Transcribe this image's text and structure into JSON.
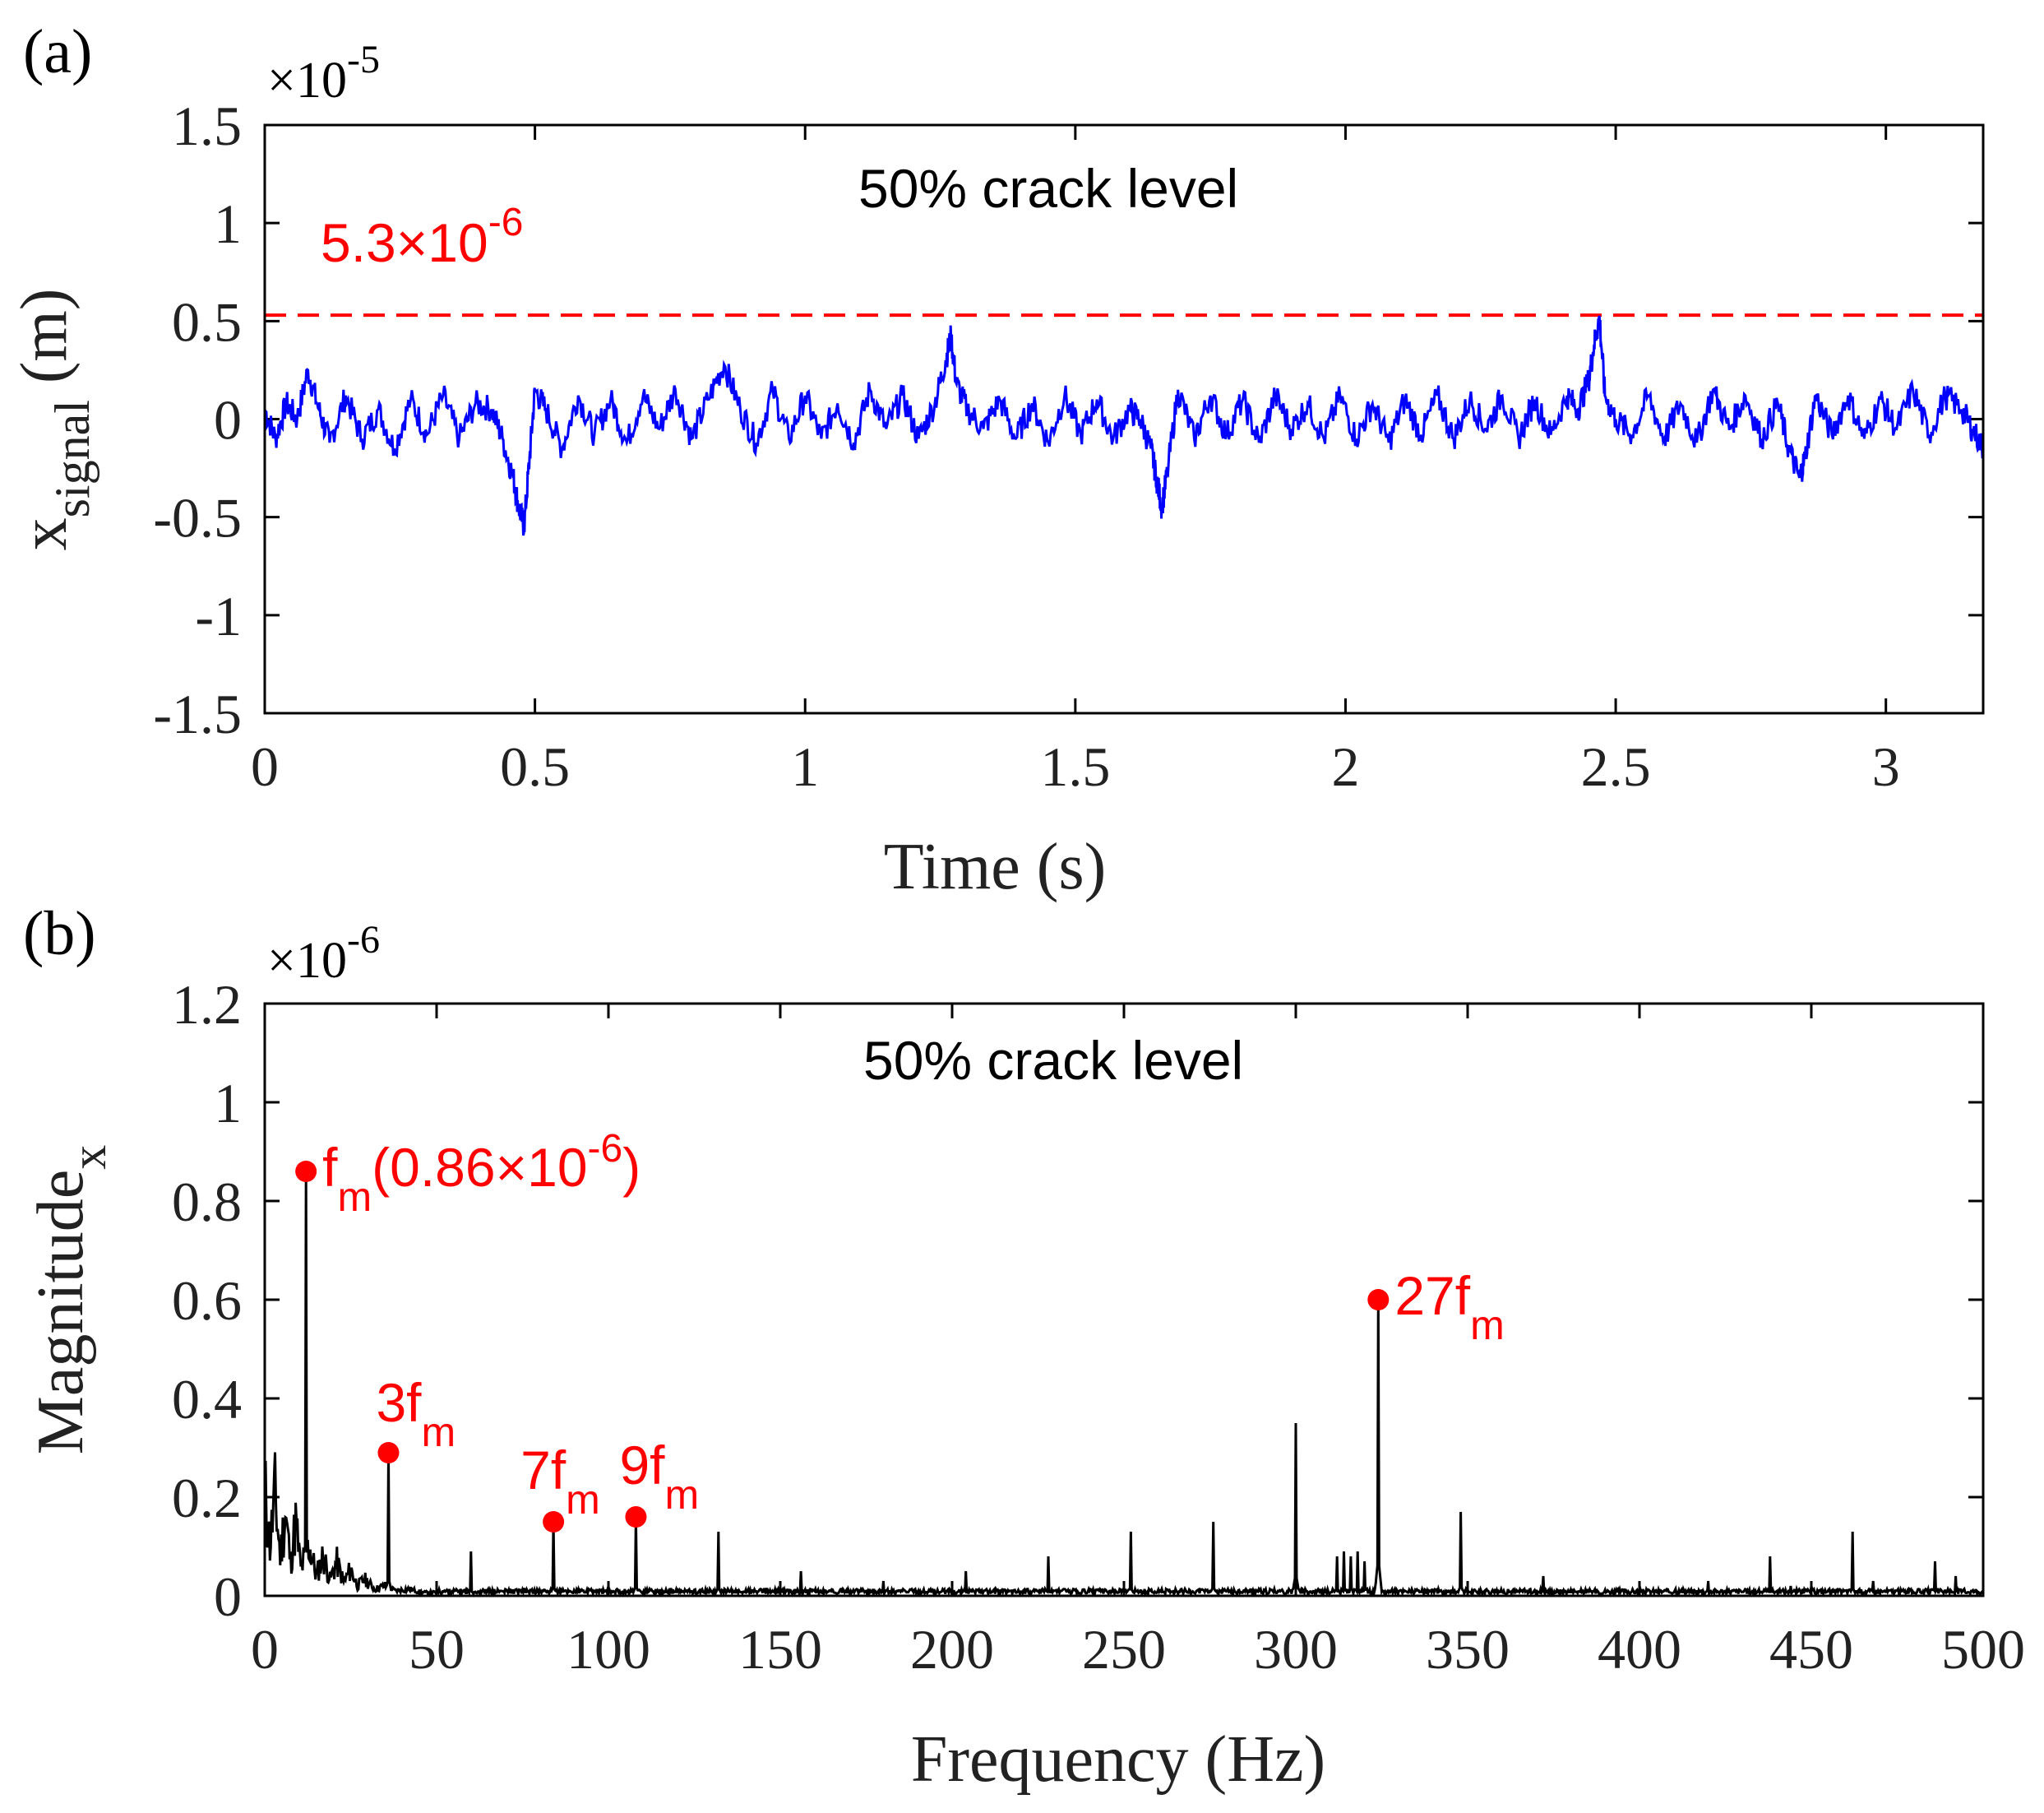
{
  "chart_data": [
    {
      "type": "line",
      "panel_label": "(a)",
      "title": "50% crack level",
      "xlabel": "Time (s)",
      "ylabel_main": "x",
      "ylabel_sub": "signal",
      "ylabel_unit": " (m)",
      "exponent_prefix": "×10",
      "exponent_power": "-5",
      "xlim": [
        0,
        3.18
      ],
      "ylim": [
        -1.5,
        1.5
      ],
      "xticks": [
        0,
        0.5,
        1,
        1.5,
        2,
        2.5,
        3
      ],
      "xtick_labels": [
        "0",
        "0.5",
        "1",
        "1.5",
        "2",
        "2.5",
        "3"
      ],
      "yticks": [
        -1.5,
        -1,
        -0.5,
        0,
        0.5,
        1,
        1.5
      ],
      "ytick_labels": [
        "-1.5",
        "-1",
        "-0.5",
        "0",
        "0.5",
        "1",
        "1.5"
      ],
      "threshold": {
        "value": 0.53,
        "label_mantissa": "5.3×10",
        "label_power": "-6",
        "color": "#ff0000"
      },
      "series": [
        {
          "name": "x_signal",
          "color": "#0000ff",
          "x": [
            0,
            0.02,
            0.04,
            0.06,
            0.08,
            0.1,
            0.12,
            0.15,
            0.18,
            0.21,
            0.24,
            0.27,
            0.3,
            0.33,
            0.36,
            0.39,
            0.42,
            0.44,
            0.46,
            0.47,
            0.48,
            0.49,
            0.5,
            0.52,
            0.55,
            0.58,
            0.61,
            0.64,
            0.67,
            0.7,
            0.73,
            0.76,
            0.79,
            0.82,
            0.85,
            0.88,
            0.91,
            0.94,
            0.97,
            1.0,
            1.03,
            1.06,
            1.09,
            1.12,
            1.15,
            1.18,
            1.21,
            1.24,
            1.26,
            1.27,
            1.28,
            1.3,
            1.33,
            1.36,
            1.39,
            1.42,
            1.45,
            1.48,
            1.51,
            1.54,
            1.57,
            1.6,
            1.62,
            1.64,
            1.65,
            1.66,
            1.67,
            1.69,
            1.72,
            1.75,
            1.78,
            1.81,
            1.84,
            1.87,
            1.9,
            1.93,
            1.96,
            1.99,
            2.02,
            2.05,
            2.08,
            2.11,
            2.14,
            2.17,
            2.2,
            2.23,
            2.26,
            2.29,
            2.32,
            2.35,
            2.38,
            2.41,
            2.43,
            2.45,
            2.46,
            2.47,
            2.48,
            2.5,
            2.53,
            2.56,
            2.59,
            2.62,
            2.65,
            2.68,
            2.71,
            2.74,
            2.77,
            2.8,
            2.82,
            2.84,
            2.85,
            2.87,
            2.9,
            2.93,
            2.96,
            2.99,
            3.02,
            3.05,
            3.08,
            3.11,
            3.14,
            3.16,
            3.18
          ],
          "y": [
            0.05,
            -0.1,
            0.08,
            0.0,
            0.25,
            0.05,
            -0.12,
            0.12,
            -0.1,
            0.05,
            -0.15,
            0.1,
            -0.08,
            0.12,
            -0.1,
            0.08,
            0.05,
            -0.1,
            -0.3,
            -0.45,
            -0.55,
            -0.2,
            0.15,
            0.05,
            -0.15,
            0.12,
            -0.08,
            0.1,
            -0.12,
            0.12,
            -0.05,
            0.15,
            -0.1,
            0.1,
            0.28,
            0.05,
            -0.12,
            0.15,
            -0.1,
            0.12,
            -0.1,
            0.08,
            -0.12,
            0.15,
            -0.05,
            0.12,
            -0.1,
            0.08,
            0.3,
            0.42,
            0.18,
            0.05,
            -0.05,
            0.1,
            -0.1,
            0.08,
            -0.12,
            0.12,
            -0.08,
            0.1,
            -0.1,
            0.05,
            0.0,
            -0.15,
            -0.3,
            -0.45,
            -0.28,
            0.15,
            -0.1,
            0.12,
            -0.08,
            0.1,
            -0.12,
            0.12,
            -0.05,
            0.08,
            -0.1,
            0.12,
            -0.1,
            0.08,
            -0.12,
            0.1,
            -0.08,
            0.12,
            -0.1,
            0.1,
            -0.05,
            0.12,
            -0.1,
            0.1,
            -0.08,
            0.12,
            0.05,
            0.2,
            0.38,
            0.52,
            0.12,
            0.0,
            -0.08,
            0.12,
            -0.1,
            0.08,
            -0.12,
            0.15,
            -0.05,
            0.12,
            -0.1,
            0.08,
            -0.15,
            -0.3,
            -0.2,
            0.12,
            -0.08,
            0.12,
            -0.1,
            0.1,
            -0.05,
            0.15,
            -0.08,
            0.12,
            0.05,
            -0.05,
            -0.15
          ]
        }
      ]
    },
    {
      "type": "line",
      "panel_label": "(b)",
      "title": "50% crack level",
      "xlabel": "Frequency (Hz)",
      "ylabel_main": "Magnitude",
      "ylabel_sub": "x",
      "exponent_prefix": "×10",
      "exponent_power": "-6",
      "xlim": [
        0,
        500
      ],
      "ylim": [
        0,
        1.2
      ],
      "xticks": [
        0,
        50,
        100,
        150,
        200,
        250,
        300,
        350,
        400,
        450,
        500
      ],
      "xtick_labels": [
        "0",
        "50",
        "100",
        "150",
        "200",
        "250",
        "300",
        "350",
        "400",
        "450",
        "500"
      ],
      "yticks": [
        0,
        0.2,
        0.4,
        0.6,
        0.8,
        1,
        1.2
      ],
      "ytick_labels": [
        "0",
        "0.2",
        "0.4",
        "0.6",
        "0.8",
        "1",
        "1.2"
      ],
      "series": [
        {
          "name": "spectrum",
          "color": "#000000",
          "low_freq_x": [
            0,
            1.5,
            3,
            4.5,
            6,
            7.5,
            9,
            10.5,
            13,
            15,
            17,
            19,
            21,
            23,
            25,
            27,
            29,
            32,
            35,
            38,
            42,
            46,
            50
          ],
          "low_freq_y": [
            0.32,
            0.15,
            0.3,
            0.12,
            0.25,
            0.1,
            0.22,
            0.08,
            0.15,
            0.06,
            0.12,
            0.05,
            0.1,
            0.04,
            0.08,
            0.03,
            0.05,
            0.02,
            0.03,
            0.015,
            0.02,
            0.01,
            0.01
          ],
          "peak_x": [
            12,
            36,
            60,
            84,
            108,
            132,
            156,
            180,
            204,
            228,
            252,
            276,
            300,
            312,
            314,
            316,
            318,
            320,
            324,
            348,
            372,
            396,
            420,
            438,
            444,
            450,
            462,
            468,
            486,
            492
          ],
          "peak_y": [
            0.86,
            0.29,
            0.09,
            0.15,
            0.16,
            0.13,
            0.05,
            0.03,
            0.05,
            0.08,
            0.13,
            0.15,
            0.35,
            0.08,
            0.09,
            0.08,
            0.09,
            0.07,
            0.6,
            0.17,
            0.04,
            0.01,
            0.03,
            0.08,
            0.02,
            0.02,
            0.13,
            0.03,
            0.07,
            0.04
          ]
        }
      ],
      "annotations": [
        {
          "x": 12,
          "y": 0.86,
          "main": "f",
          "sub": "m",
          "suffix_mantissa": "(0.86×10",
          "suffix_power": "-6",
          "suffix_close": ")"
        },
        {
          "x": 36,
          "y": 0.29,
          "main": "3f",
          "sub": "m"
        },
        {
          "x": 84,
          "y": 0.15,
          "main": "7f",
          "sub": "m"
        },
        {
          "x": 108,
          "y": 0.16,
          "main": "9f",
          "sub": "m"
        },
        {
          "x": 324,
          "y": 0.6,
          "main": "27f",
          "sub": "m"
        }
      ],
      "annotation_color": "#ff0000"
    }
  ]
}
